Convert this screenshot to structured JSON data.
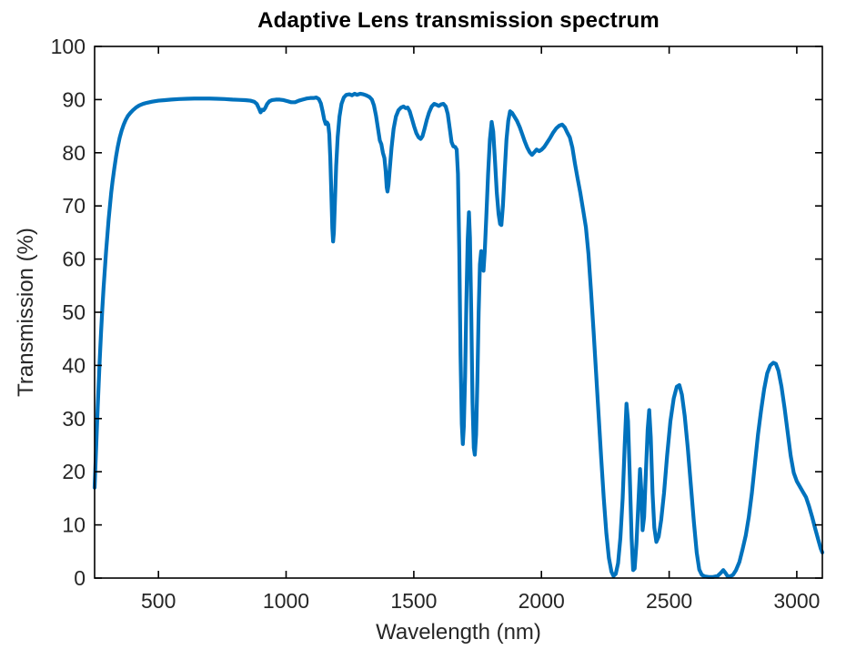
{
  "chart_data": {
    "type": "line",
    "title": "Adaptive Lens transmission spectrum",
    "xlabel": "Wavelength (nm)",
    "ylabel": "Transmission (%)",
    "xlim": [
      250,
      3100
    ],
    "ylim": [
      0,
      100
    ],
    "x_ticks": [
      500,
      1000,
      1500,
      2000,
      2500,
      3000
    ],
    "y_ticks": [
      0,
      10,
      20,
      30,
      40,
      50,
      60,
      70,
      80,
      90,
      100
    ],
    "grid": false,
    "legend": "none",
    "box": true,
    "tick_direction": "in",
    "line_color": "#0072BD",
    "axis_color": "#000000",
    "text_color": "#262626",
    "background_color": "#ffffff",
    "series": [
      {
        "name": "transmission",
        "points": [
          [
            250,
            17
          ],
          [
            254,
            22
          ],
          [
            258,
            27
          ],
          [
            262,
            32
          ],
          [
            266,
            36.5
          ],
          [
            270,
            41
          ],
          [
            275,
            46
          ],
          [
            280,
            50.5
          ],
          [
            285,
            54.5
          ],
          [
            290,
            58
          ],
          [
            295,
            61.5
          ],
          [
            300,
            64.5
          ],
          [
            305,
            67.5
          ],
          [
            310,
            70
          ],
          [
            315,
            72.5
          ],
          [
            320,
            74.5
          ],
          [
            327,
            77
          ],
          [
            334,
            79.3
          ],
          [
            341,
            81.2
          ],
          [
            348,
            82.8
          ],
          [
            356,
            84.2
          ],
          [
            364,
            85.3
          ],
          [
            372,
            86.2
          ],
          [
            380,
            86.9
          ],
          [
            390,
            87.5
          ],
          [
            400,
            88.0
          ],
          [
            412,
            88.5
          ],
          [
            425,
            88.9
          ],
          [
            440,
            89.2
          ],
          [
            455,
            89.4
          ],
          [
            475,
            89.6
          ],
          [
            500,
            89.8
          ],
          [
            525,
            89.9
          ],
          [
            550,
            90.0
          ],
          [
            580,
            90.1
          ],
          [
            610,
            90.15
          ],
          [
            640,
            90.2
          ],
          [
            670,
            90.2
          ],
          [
            700,
            90.2
          ],
          [
            730,
            90.15
          ],
          [
            760,
            90.1
          ],
          [
            790,
            90.0
          ],
          [
            815,
            89.95
          ],
          [
            840,
            89.9
          ],
          [
            860,
            89.8
          ],
          [
            875,
            89.6
          ],
          [
            885,
            89.2
          ],
          [
            893,
            88.4
          ],
          [
            900,
            87.6
          ],
          [
            906,
            88.1
          ],
          [
            912,
            88.0
          ],
          [
            918,
            88.4
          ],
          [
            926,
            89.2
          ],
          [
            935,
            89.7
          ],
          [
            945,
            89.9
          ],
          [
            960,
            90.0
          ],
          [
            975,
            90.0
          ],
          [
            990,
            89.9
          ],
          [
            1005,
            89.7
          ],
          [
            1020,
            89.5
          ],
          [
            1035,
            89.5
          ],
          [
            1050,
            89.8
          ],
          [
            1065,
            90.0
          ],
          [
            1080,
            90.2
          ],
          [
            1095,
            90.3
          ],
          [
            1108,
            90.3
          ],
          [
            1118,
            90.4
          ],
          [
            1128,
            90.1
          ],
          [
            1136,
            89.3
          ],
          [
            1143,
            87.8
          ],
          [
            1149,
            86.3
          ],
          [
            1155,
            85.4
          ],
          [
            1160,
            85.7
          ],
          [
            1165,
            85.3
          ],
          [
            1169,
            83.5
          ],
          [
            1173,
            79.0
          ],
          [
            1177,
            72.5
          ],
          [
            1181,
            65.8
          ],
          [
            1184,
            63.3
          ],
          [
            1187,
            65.0
          ],
          [
            1191,
            70.5
          ],
          [
            1196,
            77.5
          ],
          [
            1202,
            83.0
          ],
          [
            1209,
            86.8
          ],
          [
            1217,
            89.2
          ],
          [
            1226,
            90.4
          ],
          [
            1236,
            90.9
          ],
          [
            1248,
            91.0
          ],
          [
            1258,
            90.8
          ],
          [
            1268,
            91.1
          ],
          [
            1278,
            90.9
          ],
          [
            1290,
            91.1
          ],
          [
            1302,
            91.0
          ],
          [
            1314,
            90.8
          ],
          [
            1326,
            90.5
          ],
          [
            1336,
            90.0
          ],
          [
            1344,
            88.9
          ],
          [
            1352,
            87.0
          ],
          [
            1360,
            84.5
          ],
          [
            1367,
            82.3
          ],
          [
            1373,
            81.6
          ],
          [
            1379,
            80.0
          ],
          [
            1385,
            79.0
          ],
          [
            1390,
            76.5
          ],
          [
            1394,
            73.5
          ],
          [
            1397,
            72.7
          ],
          [
            1401,
            74.0
          ],
          [
            1406,
            77.0
          ],
          [
            1413,
            81.0
          ],
          [
            1421,
            84.5
          ],
          [
            1430,
            86.8
          ],
          [
            1440,
            88.0
          ],
          [
            1450,
            88.5
          ],
          [
            1460,
            88.7
          ],
          [
            1468,
            88.4
          ],
          [
            1476,
            88.5
          ],
          [
            1484,
            87.8
          ],
          [
            1492,
            86.5
          ],
          [
            1501,
            85.0
          ],
          [
            1510,
            83.7
          ],
          [
            1519,
            82.9
          ],
          [
            1527,
            82.6
          ],
          [
            1534,
            83.1
          ],
          [
            1542,
            84.5
          ],
          [
            1551,
            86.2
          ],
          [
            1560,
            87.6
          ],
          [
            1570,
            88.7
          ],
          [
            1580,
            89.2
          ],
          [
            1590,
            89.0
          ],
          [
            1598,
            88.8
          ],
          [
            1607,
            89.1
          ],
          [
            1616,
            89.2
          ],
          [
            1625,
            88.7
          ],
          [
            1633,
            87.3
          ],
          [
            1641,
            84.5
          ],
          [
            1648,
            82.0
          ],
          [
            1655,
            81.2
          ],
          [
            1662,
            81.1
          ],
          [
            1668,
            80.6
          ],
          [
            1673,
            76.0
          ],
          [
            1678,
            62.0
          ],
          [
            1683,
            42.0
          ],
          [
            1688,
            29.0
          ],
          [
            1692,
            25.2
          ],
          [
            1696,
            28.5
          ],
          [
            1701,
            38.0
          ],
          [
            1706,
            52.0
          ],
          [
            1711,
            63.5
          ],
          [
            1716,
            68.8
          ],
          [
            1720,
            64.0
          ],
          [
            1725,
            50.0
          ],
          [
            1730,
            33.0
          ],
          [
            1735,
            24.5
          ],
          [
            1739,
            23.2
          ],
          [
            1744,
            27.0
          ],
          [
            1749,
            37.0
          ],
          [
            1754,
            50.0
          ],
          [
            1759,
            59.0
          ],
          [
            1764,
            61.5
          ],
          [
            1769,
            58.5
          ],
          [
            1773,
            57.8
          ],
          [
            1778,
            61.5
          ],
          [
            1784,
            68.0
          ],
          [
            1791,
            76.0
          ],
          [
            1798,
            82.5
          ],
          [
            1805,
            85.8
          ],
          [
            1811,
            84.0
          ],
          [
            1818,
            78.5
          ],
          [
            1825,
            72.5
          ],
          [
            1832,
            68.5
          ],
          [
            1838,
            66.6
          ],
          [
            1843,
            66.4
          ],
          [
            1849,
            70.0
          ],
          [
            1856,
            76.5
          ],
          [
            1863,
            82.5
          ],
          [
            1870,
            86.0
          ],
          [
            1877,
            87.8
          ],
          [
            1885,
            87.5
          ],
          [
            1894,
            86.8
          ],
          [
            1904,
            86.0
          ],
          [
            1915,
            84.8
          ],
          [
            1924,
            83.6
          ],
          [
            1934,
            82.2
          ],
          [
            1944,
            81.0
          ],
          [
            1954,
            80.1
          ],
          [
            1963,
            79.6
          ],
          [
            1972,
            80.1
          ],
          [
            1981,
            80.6
          ],
          [
            1991,
            80.3
          ],
          [
            2001,
            80.6
          ],
          [
            2011,
            81.1
          ],
          [
            2022,
            81.9
          ],
          [
            2034,
            82.8
          ],
          [
            2046,
            83.8
          ],
          [
            2058,
            84.6
          ],
          [
            2070,
            85.1
          ],
          [
            2081,
            85.3
          ],
          [
            2091,
            84.8
          ],
          [
            2101,
            83.8
          ],
          [
            2111,
            82.9
          ],
          [
            2121,
            81.0
          ],
          [
            2131,
            78.0
          ],
          [
            2141,
            75.3
          ],
          [
            2152,
            72.5
          ],
          [
            2163,
            69.3
          ],
          [
            2174,
            66.0
          ],
          [
            2184,
            61.0
          ],
          [
            2194,
            54.0
          ],
          [
            2204,
            46.5
          ],
          [
            2214,
            38.5
          ],
          [
            2224,
            30.5
          ],
          [
            2234,
            22.5
          ],
          [
            2244,
            15.0
          ],
          [
            2254,
            8.5
          ],
          [
            2264,
            3.8
          ],
          [
            2274,
            1.2
          ],
          [
            2282,
            0.4
          ],
          [
            2291,
            0.8
          ],
          [
            2300,
            2.8
          ],
          [
            2309,
            7.5
          ],
          [
            2318,
            15.0
          ],
          [
            2326,
            25.0
          ],
          [
            2333,
            32.8
          ],
          [
            2339,
            29.5
          ],
          [
            2346,
            19.0
          ],
          [
            2353,
            7.5
          ],
          [
            2359,
            1.5
          ],
          [
            2365,
            1.8
          ],
          [
            2372,
            6.5
          ],
          [
            2379,
            13.5
          ],
          [
            2386,
            20.5
          ],
          [
            2391,
            16.5
          ],
          [
            2396,
            9.0
          ],
          [
            2402,
            11.5
          ],
          [
            2409,
            20.0
          ],
          [
            2416,
            28.0
          ],
          [
            2422,
            31.6
          ],
          [
            2428,
            26.5
          ],
          [
            2435,
            16.0
          ],
          [
            2442,
            9.5
          ],
          [
            2450,
            6.8
          ],
          [
            2459,
            7.8
          ],
          [
            2469,
            11.0
          ],
          [
            2480,
            16.0
          ],
          [
            2492,
            23.0
          ],
          [
            2505,
            29.5
          ],
          [
            2518,
            33.8
          ],
          [
            2530,
            36.0
          ],
          [
            2540,
            36.3
          ],
          [
            2550,
            34.5
          ],
          [
            2561,
            30.5
          ],
          [
            2573,
            24.5
          ],
          [
            2585,
            17.5
          ],
          [
            2597,
            10.5
          ],
          [
            2608,
            4.8
          ],
          [
            2618,
            1.6
          ],
          [
            2628,
            0.6
          ],
          [
            2640,
            0.3
          ],
          [
            2655,
            0.2
          ],
          [
            2672,
            0.2
          ],
          [
            2690,
            0.4
          ],
          [
            2703,
            1.0
          ],
          [
            2712,
            1.5
          ],
          [
            2720,
            1.0
          ],
          [
            2728,
            0.4
          ],
          [
            2738,
            0.3
          ],
          [
            2750,
            0.6
          ],
          [
            2762,
            1.5
          ],
          [
            2775,
            3.0
          ],
          [
            2788,
            5.5
          ],
          [
            2800,
            8.0
          ],
          [
            2812,
            11.5
          ],
          [
            2824,
            16.0
          ],
          [
            2836,
            21.5
          ],
          [
            2848,
            27.0
          ],
          [
            2860,
            31.5
          ],
          [
            2872,
            35.5
          ],
          [
            2884,
            38.5
          ],
          [
            2896,
            40.0
          ],
          [
            2908,
            40.5
          ],
          [
            2918,
            40.3
          ],
          [
            2928,
            39.0
          ],
          [
            2940,
            36.0
          ],
          [
            2952,
            32.0
          ],
          [
            2964,
            27.5
          ],
          [
            2976,
            23.0
          ],
          [
            2988,
            19.8
          ],
          [
            3000,
            18.2
          ],
          [
            3012,
            17.2
          ],
          [
            3024,
            16.2
          ],
          [
            3036,
            15.2
          ],
          [
            3048,
            13.5
          ],
          [
            3060,
            11.5
          ],
          [
            3072,
            9.3
          ],
          [
            3084,
            7.2
          ],
          [
            3094,
            5.5
          ],
          [
            3100,
            4.8
          ]
        ]
      }
    ]
  }
}
